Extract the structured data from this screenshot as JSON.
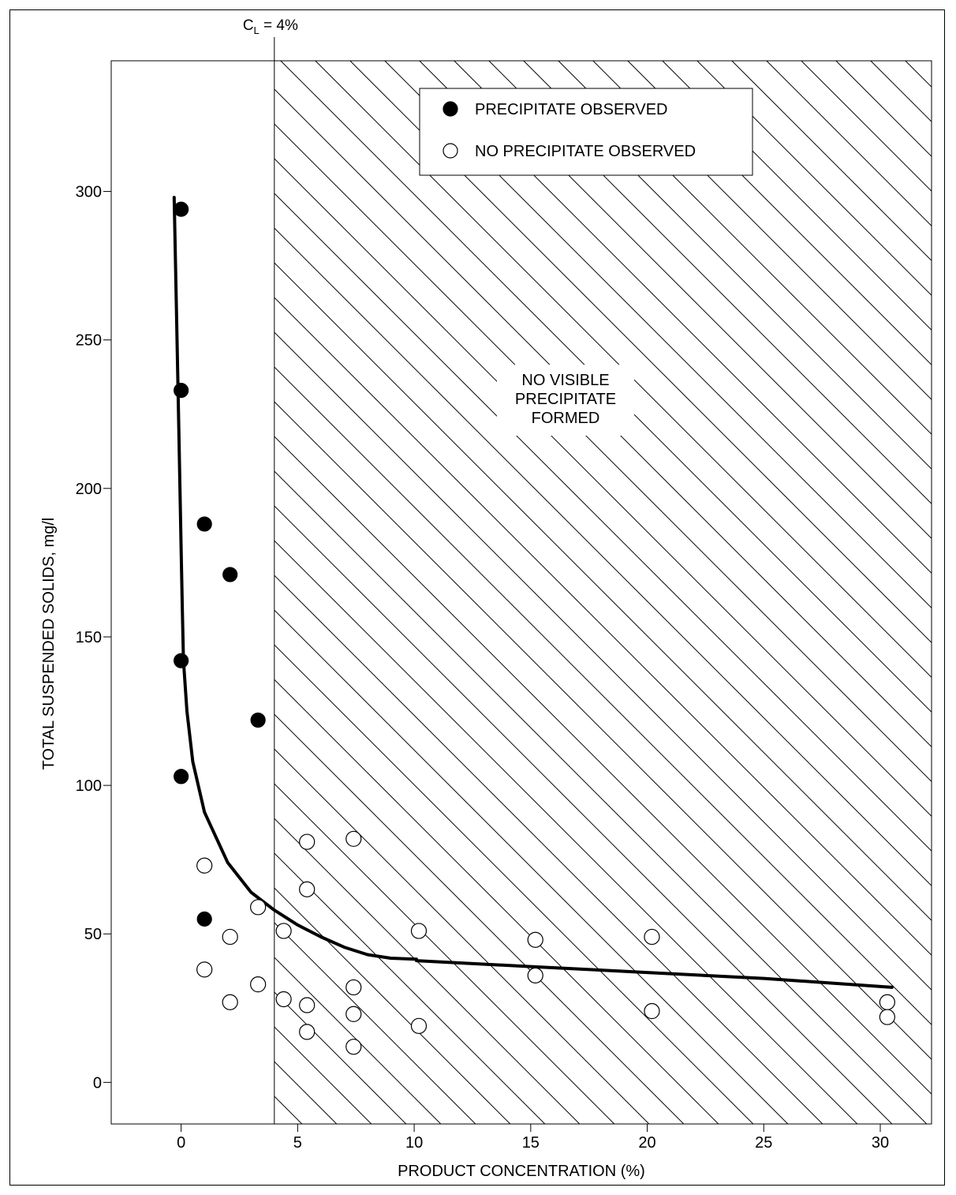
{
  "chart_data": {
    "type": "scatter",
    "title": "",
    "xlabel": "PRODUCT CONCENTRATION (%)",
    "ylabel": "TOTAL SUSPENDED SOLIDS, mg/l",
    "xlim": [
      -3,
      32.2
    ],
    "ylim": [
      -14,
      344
    ],
    "x_ticks": [
      0,
      5,
      10,
      15,
      20,
      25,
      30
    ],
    "y_ticks": [
      0,
      50,
      100,
      150,
      200,
      250,
      300
    ],
    "grid": false,
    "legend_position": "top-center",
    "limit_line": {
      "x": 4,
      "label_main": "C",
      "label_sub": "L",
      "label_rest": " = 4%"
    },
    "region_label": [
      "NO VISIBLE",
      "PRECIPITATE",
      "FORMED"
    ],
    "series": [
      {
        "name": "PRECIPITATE OBSERVED",
        "marker": "filled-circle",
        "points": [
          [
            0,
            294
          ],
          [
            0,
            233
          ],
          [
            1,
            188
          ],
          [
            2.1,
            171
          ],
          [
            0,
            142
          ],
          [
            3.3,
            122
          ],
          [
            0,
            103
          ],
          [
            1,
            55
          ]
        ]
      },
      {
        "name": "NO PRECIPITATE OBSERVED",
        "marker": "open-circle",
        "points": [
          [
            5.4,
            81
          ],
          [
            7.4,
            82
          ],
          [
            1,
            73
          ],
          [
            5.4,
            65
          ],
          [
            3.3,
            59
          ],
          [
            4.4,
            51
          ],
          [
            2.1,
            49
          ],
          [
            10.2,
            51
          ],
          [
            15.2,
            48
          ],
          [
            20.2,
            49
          ],
          [
            1,
            38
          ],
          [
            3.3,
            33
          ],
          [
            7.4,
            32
          ],
          [
            15.2,
            36
          ],
          [
            2.1,
            27
          ],
          [
            4.4,
            28
          ],
          [
            5.4,
            26
          ],
          [
            7.4,
            23
          ],
          [
            20.2,
            24
          ],
          [
            5.4,
            17
          ],
          [
            10.2,
            19
          ],
          [
            7.4,
            12
          ],
          [
            30.3,
            27
          ],
          [
            30.3,
            22
          ]
        ]
      }
    ],
    "curve": [
      [
        -0.3,
        298
      ],
      [
        -0.2,
        260
      ],
      [
        -0.1,
        220
      ],
      [
        0,
        180
      ],
      [
        0.05,
        160
      ],
      [
        0.1,
        142
      ],
      [
        0.25,
        125
      ],
      [
        0.5,
        108
      ],
      [
        1,
        91
      ],
      [
        2,
        74
      ],
      [
        3,
        64
      ],
      [
        4,
        58
      ],
      [
        5,
        53
      ],
      [
        6,
        49
      ],
      [
        7,
        45.5
      ],
      [
        8,
        43
      ],
      [
        9,
        41.8
      ],
      [
        10.1,
        41.5
      ],
      [
        10.1,
        41
      ],
      [
        15,
        39
      ],
      [
        20,
        37
      ],
      [
        25,
        35
      ],
      [
        30.5,
        32
      ]
    ],
    "colors": {
      "ink": "#000000",
      "background": "#ffffff"
    }
  }
}
